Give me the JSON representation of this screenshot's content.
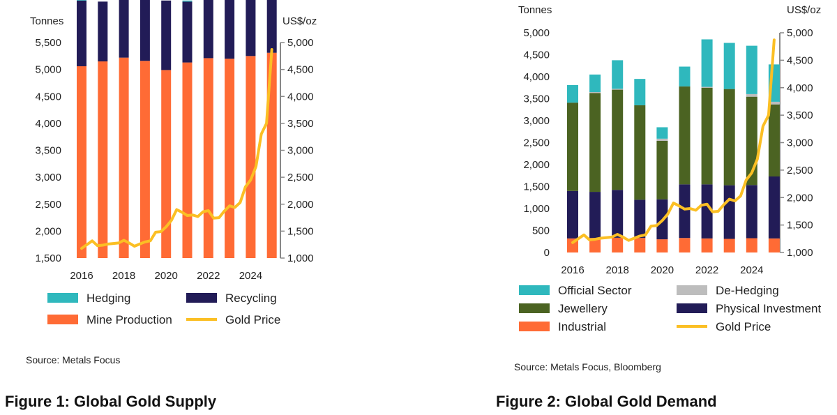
{
  "figure1": {
    "caption": "Figure 1: Global Gold Supply",
    "source": "Source: Metals Focus"
  },
  "figure2": {
    "caption": "Figure 2: Global Gold Demand",
    "source": "Source: Metals Focus, Bloomberg"
  },
  "chart_data": [
    {
      "type": "bar",
      "stacked": true,
      "y_axis_label": "Tonnes",
      "y2_axis_label": "US$/oz",
      "ylim": [
        1500,
        5500
      ],
      "y_ticks": [
        1500,
        2000,
        2500,
        3000,
        3500,
        4000,
        4500,
        5000,
        5500
      ],
      "y2lim": [
        1000,
        5000
      ],
      "y2_ticks": [
        1000,
        1500,
        2000,
        2500,
        3000,
        3500,
        4000,
        4500,
        5000
      ],
      "x_tick_labels": [
        "2016",
        "2018",
        "2020",
        "2022",
        "2024"
      ],
      "categories": [
        "2016",
        "2017",
        "2018",
        "2019",
        "2020",
        "2021",
        "2022",
        "2023",
        "2024",
        "2025"
      ],
      "series": [
        {
          "name": "Mine Production",
          "color": "#ff6b35",
          "values": [
            3560,
            3650,
            3720,
            3660,
            3490,
            3630,
            3710,
            3700,
            3750,
            3810
          ]
        },
        {
          "name": "Recycling",
          "color": "#221c57",
          "values": [
            1220,
            1110,
            1130,
            1260,
            1290,
            1130,
            1130,
            1240,
            1360,
            1410
          ]
        },
        {
          "name": "Hedging",
          "color": "#2fb8bd",
          "values": [
            40,
            0,
            0,
            10,
            0,
            20,
            0,
            60,
            0,
            0
          ]
        }
      ],
      "line": {
        "name": "Gold Price",
        "color": "#fbbf24",
        "axis": "y2",
        "x": [
          0,
          0.25,
          0.5,
          0.75,
          1,
          1.25,
          1.5,
          1.75,
          2,
          2.25,
          2.5,
          2.75,
          3,
          3.25,
          3.5,
          3.75,
          4,
          4.25,
          4.5,
          4.75,
          5,
          5.25,
          5.5,
          5.75,
          6,
          6.25,
          6.5,
          6.75,
          7,
          7.25,
          7.5,
          7.75,
          8,
          8.25,
          8.5,
          8.75,
          9
        ],
        "values": [
          1180,
          1250,
          1320,
          1230,
          1240,
          1260,
          1270,
          1280,
          1330,
          1280,
          1220,
          1260,
          1300,
          1320,
          1480,
          1490,
          1580,
          1700,
          1900,
          1850,
          1790,
          1800,
          1770,
          1860,
          1880,
          1740,
          1750,
          1870,
          1970,
          1940,
          2030,
          2320,
          2450,
          2700,
          3300,
          3500,
          4870
        ]
      },
      "legend": [
        {
          "label": "Hedging",
          "kind": "box",
          "color": "#2fb8bd"
        },
        {
          "label": "Recycling",
          "kind": "box",
          "color": "#221c57"
        },
        {
          "label": "Mine Production",
          "kind": "box",
          "color": "#ff6b35"
        },
        {
          "label": "Gold Price",
          "kind": "line",
          "color": "#fbbf24"
        }
      ],
      "legend_position": "bottom"
    },
    {
      "type": "bar",
      "stacked": true,
      "y_axis_label": "Tonnes",
      "y2_axis_label": "US$/oz",
      "ylim": [
        0,
        5000
      ],
      "y_ticks": [
        0,
        500,
        1000,
        1500,
        2000,
        2500,
        3000,
        3500,
        4000,
        4500,
        5000
      ],
      "y_tick_labels": [
        "0",
        "500",
        "1,000",
        "1,500",
        "2,000",
        "2,500",
        "3,000",
        "3,500",
        "4,000",
        "4,500",
        "5,000"
      ],
      "y2lim": [
        1000,
        5000
      ],
      "y2_ticks": [
        1000,
        1500,
        2000,
        2500,
        3000,
        3500,
        4000,
        4500,
        5000
      ],
      "x_tick_labels": [
        "2016",
        "2018",
        "2020",
        "2022",
        "2024"
      ],
      "categories": [
        "2016",
        "2017",
        "2018",
        "2019",
        "2020",
        "2021",
        "2022",
        "2023",
        "2024",
        "2025"
      ],
      "series": [
        {
          "name": "Industrial",
          "color": "#ff6b35",
          "values": [
            320,
            330,
            335,
            330,
            300,
            330,
            320,
            310,
            325,
            320
          ]
        },
        {
          "name": "Physical Investment",
          "color": "#221c57",
          "values": [
            1080,
            1050,
            1090,
            870,
            910,
            1220,
            1230,
            1220,
            1210,
            1410
          ]
        },
        {
          "name": "Jewellery",
          "color": "#4b6322",
          "values": [
            2010,
            2250,
            2280,
            2150,
            1330,
            2230,
            2200,
            2190,
            2010,
            1640
          ]
        },
        {
          "name": "De-Hedging",
          "color": "#bdbdbd",
          "values": [
            0,
            20,
            20,
            0,
            50,
            0,
            20,
            0,
            60,
            60
          ]
        },
        {
          "name": "Official Sector",
          "color": "#2fb8bd",
          "values": [
            400,
            400,
            650,
            600,
            260,
            450,
            1080,
            1050,
            1100,
            850
          ]
        }
      ],
      "line": {
        "name": "Gold Price",
        "color": "#fbbf24",
        "axis": "y2",
        "x": [
          0,
          0.25,
          0.5,
          0.75,
          1,
          1.25,
          1.5,
          1.75,
          2,
          2.25,
          2.5,
          2.75,
          3,
          3.25,
          3.5,
          3.75,
          4,
          4.25,
          4.5,
          4.75,
          5,
          5.25,
          5.5,
          5.75,
          6,
          6.25,
          6.5,
          6.75,
          7,
          7.25,
          7.5,
          7.75,
          8,
          8.25,
          8.5,
          8.75,
          9
        ],
        "values": [
          1180,
          1250,
          1320,
          1230,
          1240,
          1260,
          1270,
          1280,
          1330,
          1280,
          1220,
          1260,
          1300,
          1320,
          1480,
          1490,
          1580,
          1700,
          1900,
          1850,
          1790,
          1800,
          1770,
          1860,
          1880,
          1740,
          1750,
          1870,
          1970,
          1940,
          2030,
          2320,
          2450,
          2700,
          3300,
          3500,
          4870
        ]
      },
      "legend": [
        {
          "label": "Official Sector",
          "kind": "box",
          "color": "#2fb8bd"
        },
        {
          "label": "De-Hedging",
          "kind": "box",
          "color": "#bdbdbd"
        },
        {
          "label": "Jewellery",
          "kind": "box",
          "color": "#4b6322"
        },
        {
          "label": "Physical Investment",
          "kind": "box",
          "color": "#221c57"
        },
        {
          "label": "Industrial",
          "kind": "box",
          "color": "#ff6b35"
        },
        {
          "label": "Gold Price",
          "kind": "line",
          "color": "#fbbf24"
        }
      ],
      "legend_position": "bottom"
    }
  ]
}
